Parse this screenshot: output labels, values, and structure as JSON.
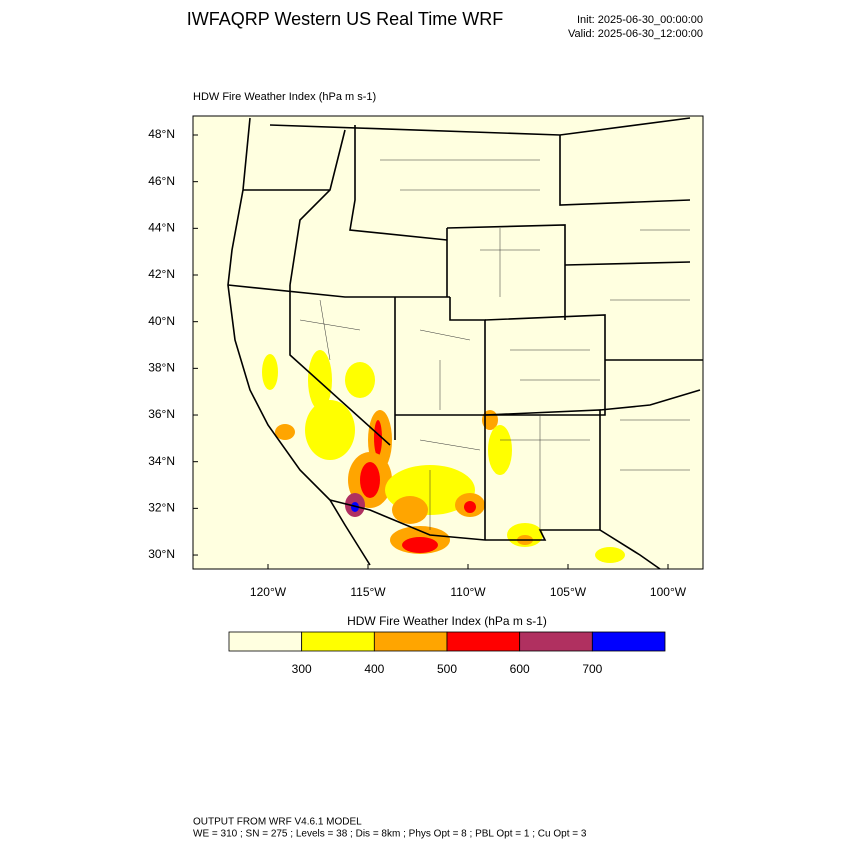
{
  "header": {
    "title": "IWFAQRP Western US Real Time WRF",
    "init": "Init: 2025-06-30_00:00:00",
    "valid": "Valid: 2025-06-30_12:00:00"
  },
  "map": {
    "subtitle": "HDW Fire Weather Index   (hPa m s-1)",
    "lat_labels": [
      "48°N",
      "46°N",
      "44°N",
      "42°N",
      "40°N",
      "38°N",
      "36°N",
      "34°N",
      "32°N",
      "30°N"
    ],
    "lon_labels": [
      "120°W",
      "115°W",
      "110°W",
      "105°W",
      "100°W"
    ]
  },
  "colorbar": {
    "title": "HDW Fire Weather Index (hPa m s-1)",
    "colors": [
      "#ffffe0",
      "#ffff00",
      "#ffa500",
      "#ff0000",
      "#b03060",
      "#0000ff"
    ],
    "labels": [
      "300",
      "400",
      "500",
      "600",
      "700"
    ]
  },
  "footer": {
    "line1": "OUTPUT FROM WRF V4.6.1 MODEL",
    "line2": "WE = 310 ; SN = 275 ; Levels = 38 ; Dis = 8km ; Phys Opt = 8 ; PBL Opt = 1 ; Cu Opt = 3"
  }
}
